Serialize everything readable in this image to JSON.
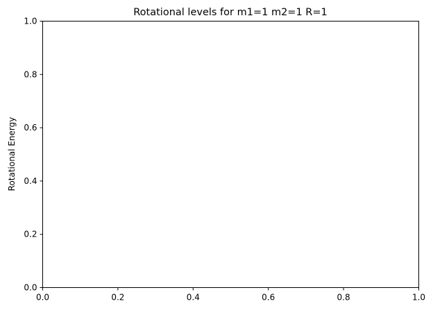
{
  "chart_data": {
    "type": "line",
    "title": "Rotational levels for m1=1 m2=1 R=1",
    "xlabel": "",
    "ylabel": "Rotational Energy",
    "xlim": [
      0.0,
      1.0
    ],
    "ylim": [
      0.0,
      1.0
    ],
    "xticks": [
      "0.0",
      "0.2",
      "0.4",
      "0.6",
      "0.8",
      "1.0"
    ],
    "yticks": [
      "0.0",
      "0.2",
      "0.4",
      "0.6",
      "0.8",
      "1.0"
    ],
    "series": [],
    "grid": false,
    "legend": "none"
  }
}
